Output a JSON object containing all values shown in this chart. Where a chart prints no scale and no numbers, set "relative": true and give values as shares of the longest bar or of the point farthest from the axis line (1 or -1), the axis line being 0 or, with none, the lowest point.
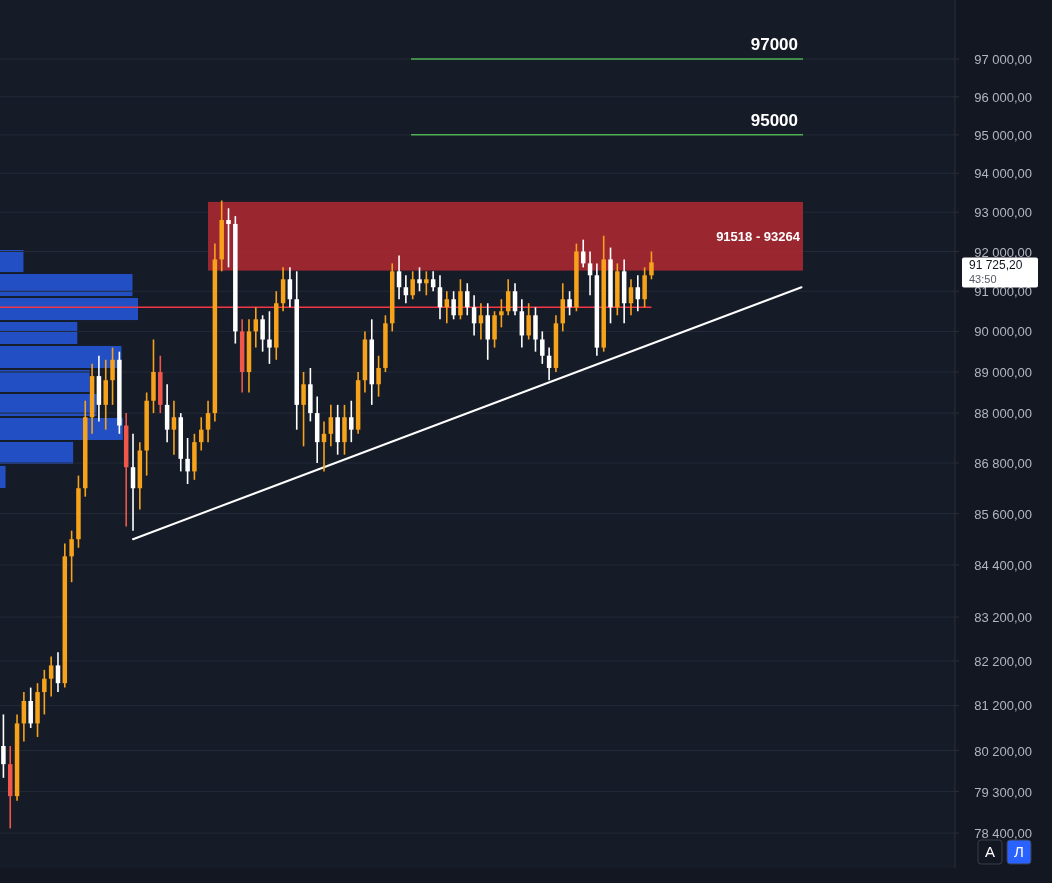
{
  "chart_data": [
    {
      "type": "candlestick",
      "log": true,
      "grid": "y",
      "tick_labels": "y",
      "categories": [
        null,
        null,
        null,
        null,
        null,
        null,
        null,
        null,
        null,
        null,
        null,
        null,
        null,
        null,
        null,
        null,
        null,
        null,
        null,
        null,
        null,
        null,
        null,
        null,
        null,
        null,
        null,
        null,
        null,
        null,
        null,
        null,
        null,
        null,
        null,
        null,
        null,
        null,
        null,
        null,
        null,
        null,
        null,
        null,
        null,
        null,
        null,
        null,
        null,
        null,
        null,
        null,
        null,
        null,
        null,
        null,
        null,
        null,
        null,
        null,
        null,
        null,
        null,
        null,
        null,
        null,
        null,
        null,
        null,
        null,
        null,
        null,
        null,
        null,
        null,
        null,
        null,
        null,
        null,
        null,
        null,
        null,
        null,
        null,
        null,
        null,
        null,
        null,
        null,
        null,
        null,
        null,
        null,
        null,
        null,
        null,
        null,
        null,
        null,
        null,
        null,
        null,
        null,
        null,
        null,
        null,
        null,
        null,
        null,
        null,
        null,
        null,
        null,
        null,
        null,
        null,
        null,
        null,
        null,
        null,
        null,
        null,
        null,
        null,
        null,
        null,
        null,
        null,
        null,
        null,
        null,
        null,
        null,
        null,
        null,
        null,
        null,
        null,
        null,
        null
      ],
      "ylim": [
        77650,
        98590
      ],
      "yticks": [
        {
          "value": 97000,
          "label": "97 000,00"
        },
        {
          "value": 96000,
          "label": "96 000,00"
        },
        {
          "value": 95000,
          "label": "95 000,00"
        },
        {
          "value": 94000,
          "label": "94 000,00"
        },
        {
          "value": 93000,
          "label": "93 000,00"
        },
        {
          "value": 92000,
          "label": "92 000,00"
        },
        {
          "value": 91000,
          "label": "91 000,00"
        },
        {
          "value": 90000,
          "label": "90 000,00"
        },
        {
          "value": 89000,
          "label": "89 000,00"
        },
        {
          "value": 88000,
          "label": "88 000,00"
        },
        {
          "value": 86800,
          "label": "86 800,00"
        },
        {
          "value": 85600,
          "label": "85 600,00"
        },
        {
          "value": 84400,
          "label": "84 400,00"
        },
        {
          "value": 83200,
          "label": "83 200,00"
        },
        {
          "value": 82200,
          "label": "82 200,00"
        },
        {
          "value": 81200,
          "label": "81 200,00"
        },
        {
          "value": 80200,
          "label": "80 200,00"
        },
        {
          "value": 79300,
          "label": "79 300,00"
        },
        {
          "value": 78400,
          "label": "78 400,00"
        }
      ],
      "ohlc": [
        [
          80300,
          81000,
          79600,
          79900
        ],
        [
          79900,
          80300,
          78500,
          79200
        ],
        [
          79200,
          81000,
          79100,
          80800
        ],
        [
          80800,
          81500,
          80400,
          81300
        ],
        [
          81300,
          81600,
          80700,
          80800
        ],
        [
          80800,
          81700,
          80500,
          81500
        ],
        [
          81500,
          82000,
          81000,
          81800
        ],
        [
          81800,
          82300,
          81400,
          82100
        ],
        [
          82100,
          82400,
          81500,
          81700
        ],
        [
          81700,
          84900,
          81600,
          84600
        ],
        [
          84600,
          85200,
          84000,
          85000
        ],
        [
          85000,
          86500,
          84800,
          86200
        ],
        [
          86200,
          88300,
          86000,
          87900
        ],
        [
          87900,
          89200,
          87500,
          88900
        ],
        [
          88900,
          89400,
          87800,
          88200
        ],
        [
          88200,
          89300,
          87600,
          88800
        ],
        [
          88800,
          89600,
          88200,
          89300
        ],
        [
          89300,
          89500,
          87500,
          87700
        ],
        [
          87700,
          88000,
          85300,
          86700
        ],
        [
          86700,
          87500,
          85200,
          86200
        ],
        [
          86200,
          87300,
          85700,
          87100
        ],
        [
          87100,
          88500,
          86500,
          88300
        ],
        [
          88300,
          89800,
          88000,
          89000
        ],
        [
          89000,
          89400,
          88000,
          88200
        ],
        [
          88200,
          88700,
          87300,
          87600
        ],
        [
          87600,
          88300,
          87000,
          87900
        ],
        [
          87900,
          88000,
          86600,
          86900
        ],
        [
          86900,
          87400,
          86300,
          86600
        ],
        [
          86600,
          87500,
          86400,
          87300
        ],
        [
          87300,
          87900,
          87100,
          87600
        ],
        [
          87600,
          88300,
          87300,
          88000
        ],
        [
          88000,
          92200,
          87800,
          91800
        ],
        [
          91800,
          93300,
          91500,
          92800
        ],
        [
          92800,
          93100,
          91600,
          92700
        ],
        [
          92700,
          92900,
          89700,
          90000
        ],
        [
          90000,
          90300,
          88500,
          89000
        ],
        [
          89000,
          90300,
          88500,
          90000
        ],
        [
          90000,
          90600,
          89600,
          90300
        ],
        [
          90300,
          90400,
          89500,
          89800
        ],
        [
          89800,
          90500,
          89200,
          89600
        ],
        [
          89600,
          91000,
          89300,
          90700
        ],
        [
          90700,
          91600,
          90500,
          91300
        ],
        [
          91300,
          91600,
          90600,
          90800
        ],
        [
          90800,
          91500,
          87600,
          88200
        ],
        [
          88200,
          89000,
          87200,
          88700
        ],
        [
          88700,
          89100,
          87800,
          88000
        ],
        [
          88000,
          88400,
          86800,
          87300
        ],
        [
          87300,
          87800,
          86600,
          87500
        ],
        [
          87500,
          88200,
          87200,
          87900
        ],
        [
          87900,
          88200,
          87000,
          87300
        ],
        [
          87300,
          88200,
          87000,
          87900
        ],
        [
          87900,
          88300,
          87300,
          87600
        ],
        [
          87600,
          89000,
          87500,
          88800
        ],
        [
          88800,
          90000,
          88500,
          89800
        ],
        [
          89800,
          90300,
          88200,
          88700
        ],
        [
          88700,
          89400,
          88400,
          89100
        ],
        [
          89100,
          90400,
          89000,
          90200
        ],
        [
          90200,
          91700,
          90000,
          91500
        ],
        [
          91500,
          91900,
          90800,
          91100
        ],
        [
          91100,
          91400,
          90700,
          90900
        ],
        [
          90900,
          91500,
          90800,
          91300
        ],
        [
          91300,
          91600,
          91000,
          91200
        ],
        [
          91200,
          91500,
          90900,
          91300
        ],
        [
          91300,
          91500,
          91000,
          91100
        ],
        [
          91100,
          91400,
          90300,
          90600
        ],
        [
          90600,
          91000,
          90200,
          90800
        ],
        [
          90800,
          91000,
          90300,
          90400
        ],
        [
          90400,
          91300,
          90300,
          91000
        ],
        [
          91000,
          91200,
          90400,
          90600
        ],
        [
          90600,
          90900,
          89900,
          90200
        ],
        [
          90200,
          90700,
          89800,
          90400
        ],
        [
          90400,
          90700,
          89300,
          89800
        ],
        [
          89800,
          90500,
          89600,
          90400
        ],
        [
          90400,
          90800,
          90100,
          90500
        ],
        [
          90500,
          91300,
          90400,
          91000
        ],
        [
          91000,
          91200,
          90400,
          90500
        ],
        [
          90500,
          90800,
          89600,
          89900
        ],
        [
          89900,
          90700,
          89800,
          90400
        ],
        [
          90400,
          90600,
          89500,
          89800
        ],
        [
          89800,
          90000,
          89200,
          89400
        ],
        [
          89400,
          89600,
          88800,
          89100
        ],
        [
          89100,
          90400,
          89000,
          90200
        ],
        [
          90200,
          91200,
          90000,
          90800
        ],
        [
          90800,
          91000,
          90400,
          90600
        ],
        [
          90600,
          92200,
          90500,
          92000
        ],
        [
          92000,
          92300,
          91600,
          91700
        ],
        [
          91700,
          92000,
          90900,
          91400
        ],
        [
          91400,
          91700,
          89400,
          89600
        ],
        [
          89600,
          92400,
          89500,
          91800
        ],
        [
          91800,
          92100,
          90200,
          90600
        ],
        [
          90600,
          91700,
          90400,
          91500
        ],
        [
          91500,
          91800,
          90200,
          90700
        ],
        [
          90700,
          91300,
          90400,
          91100
        ],
        [
          91100,
          91400,
          90500,
          90800
        ],
        [
          90800,
          91600,
          90600,
          91400
        ],
        [
          91400,
          92000,
          91300,
          91725.2
        ],
        null,
        null,
        null,
        null,
        null,
        null,
        null,
        null,
        null,
        null,
        null,
        null,
        null,
        null,
        null,
        null,
        null,
        null,
        null,
        null,
        null,
        null,
        null,
        null,
        null,
        null,
        null,
        null,
        null,
        null,
        null,
        null,
        null,
        null,
        null,
        null,
        null,
        null,
        null,
        null,
        null,
        null,
        null,
        null
      ],
      "colors": [
        "#ffffff",
        "#f0564a",
        "#f7a21b",
        "#f7a21b",
        "#ffffff",
        "#f7a21b",
        "#f7a21b",
        "#f7a21b",
        "#ffffff",
        "#f7a21b",
        "#f7a21b",
        "#f7a21b",
        "#f7a21b",
        "#f7a21b",
        "#ffffff",
        "#f7a21b",
        "#f7a21b",
        "#ffffff",
        "#f0564a",
        "#ffffff",
        "#f7a21b",
        "#f7a21b",
        "#f7a21b",
        "#f0564a",
        "#ffffff",
        "#f7a21b",
        "#ffffff",
        "#ffffff",
        "#f7a21b",
        "#f7a21b",
        "#f7a21b",
        "#f7a21b",
        "#f7a21b",
        "#ffffff",
        "#ffffff",
        "#f0564a",
        "#f7a21b",
        "#f7a21b",
        "#ffffff",
        "#ffffff",
        "#f7a21b",
        "#f7a21b",
        "#ffffff",
        "#ffffff",
        "#f7a21b",
        "#ffffff",
        "#ffffff",
        "#f7a21b",
        "#f7a21b",
        "#ffffff",
        "#f7a21b",
        "#ffffff",
        "#f7a21b",
        "#f7a21b",
        "#ffffff",
        "#f7a21b",
        "#f7a21b",
        "#f7a21b",
        "#ffffff",
        "#ffffff",
        "#f7a21b",
        "#ffffff",
        "#f7a21b",
        "#ffffff",
        "#ffffff",
        "#f7a21b",
        "#ffffff",
        "#f7a21b",
        "#ffffff",
        "#ffffff",
        "#f7a21b",
        "#ffffff",
        "#f7a21b",
        "#f7a21b",
        "#f7a21b",
        "#ffffff",
        "#ffffff",
        "#f7a21b",
        "#ffffff",
        "#ffffff",
        "#ffffff",
        "#f7a21b",
        "#f7a21b",
        "#ffffff",
        "#f7a21b",
        "#ffffff",
        "#ffffff",
        "#ffffff",
        "#f7a21b",
        "#ffffff",
        "#f7a21b",
        "#ffffff",
        "#f7a21b",
        "#ffffff",
        "#f7a21b",
        "#f7a21b",
        null,
        null,
        null,
        null,
        null,
        null,
        null,
        null,
        null,
        null,
        null,
        null,
        null,
        null,
        null,
        null,
        null,
        null,
        null,
        null,
        null,
        null,
        null,
        null,
        null,
        null,
        null,
        null,
        null,
        null,
        null,
        null,
        null,
        null,
        null,
        null,
        null,
        null,
        null,
        null,
        null,
        null,
        null,
        null
      ],
      "series": [
        {
          "type": "line",
          "color": "#ffffff",
          "values": [
            null,
            null,
            null,
            null,
            null,
            null,
            null,
            null,
            null,
            null,
            null,
            null,
            null,
            null,
            null,
            null,
            null,
            null,
            null,
            85000,
            null,
            null,
            null,
            null,
            null,
            null,
            null,
            null,
            null,
            null,
            null,
            null,
            null,
            null,
            null,
            null,
            null,
            null,
            null,
            null,
            null,
            null,
            null,
            null,
            null,
            null,
            null,
            null,
            null,
            null,
            null,
            null,
            null,
            null,
            null,
            null,
            null,
            null,
            null,
            null,
            null,
            null,
            null,
            null,
            null,
            null,
            null,
            null,
            null,
            null,
            null,
            null,
            null,
            null,
            null,
            null,
            null,
            null,
            null,
            null,
            null,
            null,
            null,
            null,
            null,
            null,
            null,
            null,
            null,
            null,
            null,
            null,
            null,
            null,
            null,
            null,
            null,
            null,
            null,
            null,
            null,
            null,
            null,
            null,
            null,
            null,
            null,
            null,
            null,
            null,
            null,
            null,
            null,
            null,
            null,
            null,
            null,
            91100,
            null,
            null,
            null,
            null,
            null,
            null,
            null,
            null,
            null,
            null,
            null,
            null,
            null,
            null,
            null,
            null,
            null,
            null,
            null,
            null,
            null,
            null
          ]
        }
      ],
      "ref_lines": [
        {
          "axis": "y",
          "value": 97000,
          "label": "97000",
          "color": "#4caf50"
        },
        {
          "axis": "y",
          "value": 95000,
          "label": "95000",
          "color": "#4caf50"
        },
        {
          "axis": "y",
          "value": 90600,
          "color": "#f23645"
        }
      ],
      "bands": [
        {
          "axis": "y",
          "from": 91518,
          "to": 93264,
          "label": "91518 - 93264",
          "color": "#b22833"
        }
      ],
      "annotations": [
        "91 725,20",
        "43:50",
        "A",
        "Л"
      ]
    },
    {
      "type": "bar",
      "orientation": "horizontal",
      "relative": true,
      "tick_labels": false,
      "color": "#2457d6",
      "categories": [
        null,
        null,
        null,
        null,
        null,
        null,
        null,
        null,
        null,
        null
      ],
      "values": [
        0.17,
        0.96,
        1,
        0.56,
        0.88,
        0.65,
        0.7,
        0.89,
        0.53,
        0.04
      ]
    }
  ]
}
